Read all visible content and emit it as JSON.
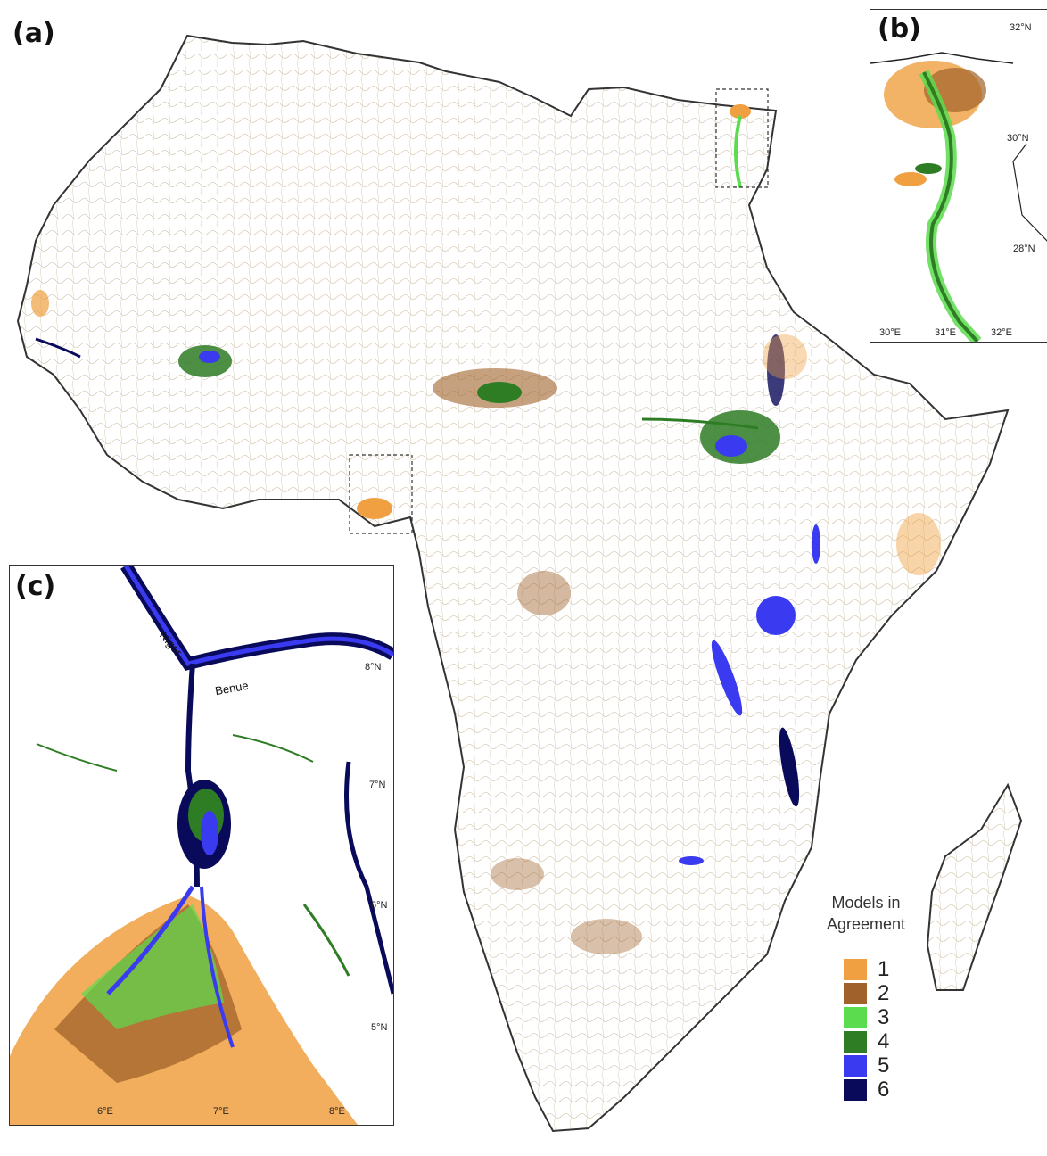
{
  "panels": {
    "a_label": "(a)",
    "b_label": "(b)",
    "c_label": "(c)"
  },
  "inset_b": {
    "lat_ticks": [
      "32°N",
      "30°N",
      "28°N"
    ],
    "lon_ticks": [
      "30°E",
      "31°E",
      "32°E"
    ]
  },
  "inset_c": {
    "lat_ticks": [
      "8°N",
      "7°N",
      "6°N",
      "5°N"
    ],
    "lon_ticks": [
      "6°E",
      "7°E",
      "8°E"
    ],
    "rivers": {
      "niger": "Niger",
      "benue": "Benue"
    }
  },
  "legend": {
    "title_line1": "Models in",
    "title_line2": "Agreement",
    "items": [
      {
        "label": "1",
        "color": "#F0A040"
      },
      {
        "label": "2",
        "color": "#A0622A"
      },
      {
        "label": "3",
        "color": "#5ADC4E"
      },
      {
        "label": "4",
        "color": "#2E7D25"
      },
      {
        "label": "5",
        "color": "#3A3AF0"
      },
      {
        "label": "6",
        "color": "#0A0A5A"
      }
    ]
  }
}
